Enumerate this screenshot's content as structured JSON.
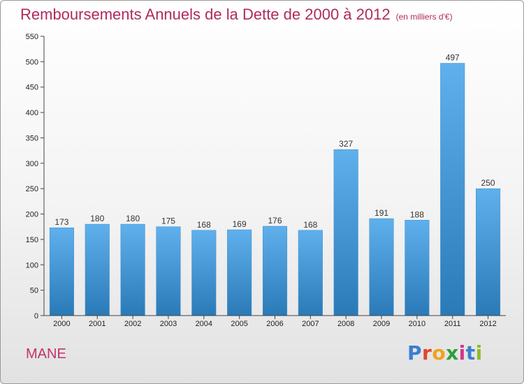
{
  "title": "Remboursements Annuels de la Dette de 2000 à 2012",
  "unit_note": "(en milliers d'€)",
  "commune": "MANE",
  "logo": {
    "text": "Proxiti",
    "letter_colors": [
      "#3a7fd0",
      "#e0452c",
      "#f2a11d",
      "#2e9e3a",
      "#d7348a",
      "#3a7fd0",
      "#8bbd28"
    ]
  },
  "colors": {
    "bar_light": "#5fb0ec",
    "bar_dark": "#2a7ab8",
    "title": "#b02a5e"
  },
  "chart_data": {
    "type": "bar",
    "title": "Remboursements Annuels de la Dette de 2000 à 2012",
    "xlabel": "",
    "ylabel": "",
    "categories": [
      "2000",
      "2001",
      "2002",
      "2003",
      "2004",
      "2005",
      "2006",
      "2007",
      "2008",
      "2009",
      "2010",
      "2011",
      "2012"
    ],
    "values": [
      173,
      180,
      180,
      175,
      168,
      169,
      176,
      168,
      327,
      191,
      188,
      497,
      250
    ],
    "ylim": [
      0,
      550
    ],
    "yticks": [
      0,
      50,
      100,
      150,
      200,
      250,
      300,
      350,
      400,
      450,
      500,
      550
    ],
    "grid": false,
    "data_labels": true
  }
}
